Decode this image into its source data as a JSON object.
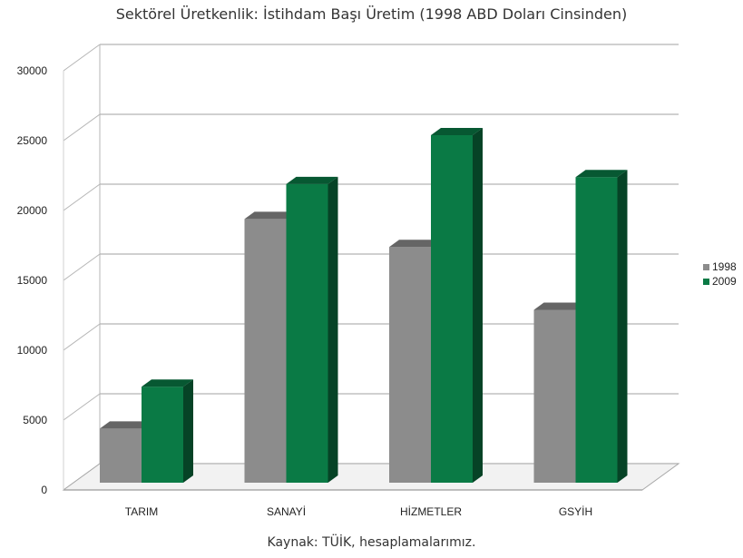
{
  "chart_data": {
    "type": "bar",
    "title": "Sektörel Üretkenlik: İstihdam Başı Üretim (1998 ABD Doları Cinsinden)",
    "source": "Kaynak: TÜİK, hesaplamalarımız.",
    "categories": [
      "TARIM",
      "SANAYİ",
      "HİZMETLER",
      "GSYİH"
    ],
    "series": [
      {
        "name": "1998",
        "values": [
          4000,
          19000,
          17000,
          12500
        ],
        "color": "#8c8c8c"
      },
      {
        "name": "2009",
        "values": [
          7000,
          21500,
          25000,
          22000
        ],
        "color": "#0a7a45"
      }
    ],
    "ylim": [
      0,
      30000
    ],
    "yticks": [
      0,
      5000,
      10000,
      15000,
      20000,
      25000,
      30000
    ],
    "xlabel": "",
    "ylabel": "",
    "grid": true,
    "legend": "right",
    "style": "3d-columns"
  }
}
